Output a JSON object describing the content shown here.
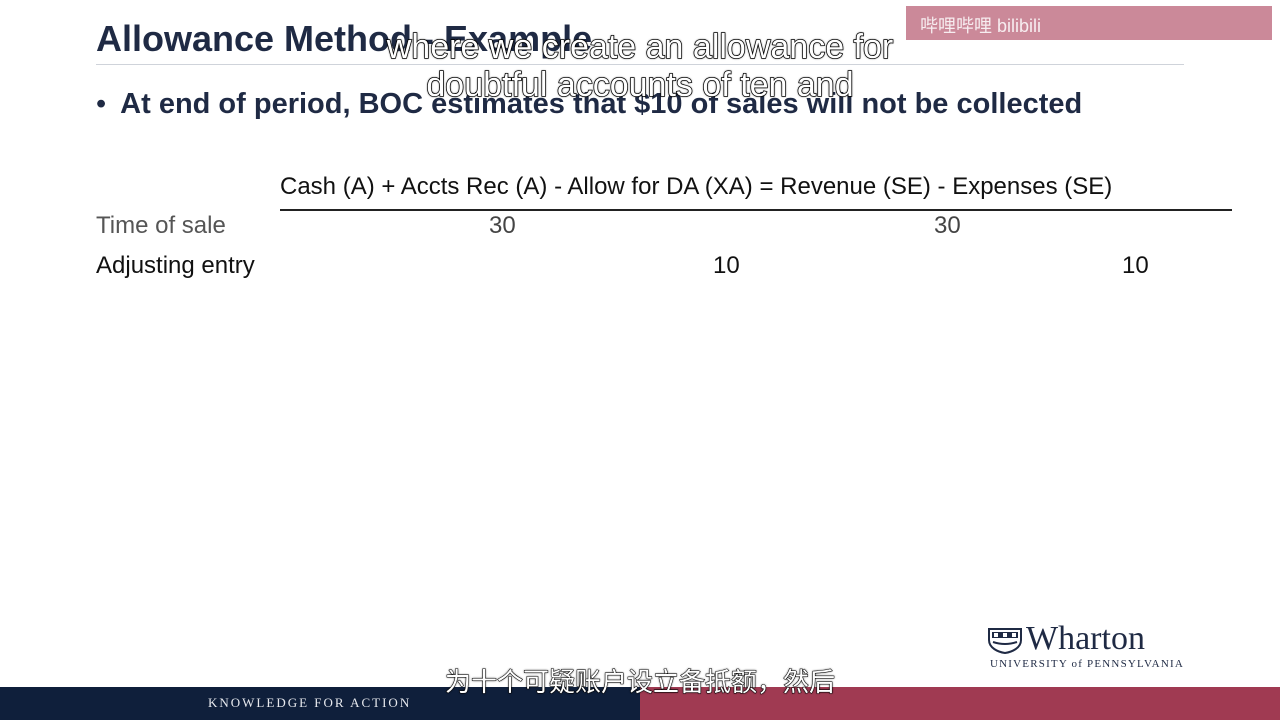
{
  "slide": {
    "title": "Allowance Method - Example",
    "bullet_marker": "•",
    "bullet": "At end of period, BOC estimates that $10 of sales will not be collected",
    "equation_header": "Cash (A) + Accts Rec (A) - Allow for DA (XA) =   Revenue (SE) - Expenses (SE)",
    "rows": [
      {
        "label": "Time of sale",
        "values": [
          "30",
          "30"
        ]
      },
      {
        "label": "Adjusting entry",
        "values": [
          "10",
          "10"
        ]
      }
    ]
  },
  "logo": {
    "brand": "Wharton",
    "university": "UNIVERSITY of PENNSYLVANIA"
  },
  "footer": {
    "tagline": "KNOWLEDGE FOR ACTION",
    "left_color": "#0f1f3b",
    "right_color": "#a03a52"
  },
  "watermark": {
    "text": "哔哩哔哩 bilibili"
  },
  "subtitles": {
    "english_line1": "where we create an allowance for",
    "english_line2": "doubtful accounts of ten and",
    "chinese": "为十个可疑账户设立备抵额，然后"
  }
}
